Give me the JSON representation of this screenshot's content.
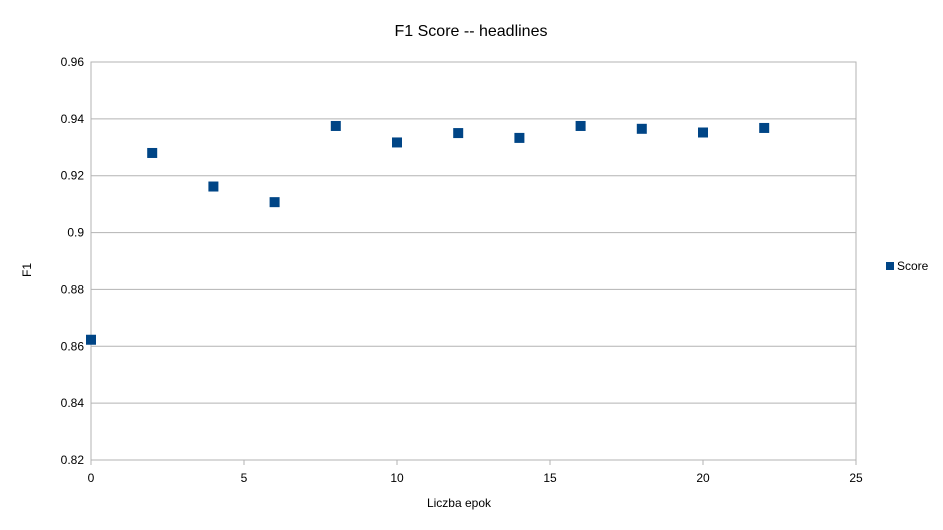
{
  "chart_data": {
    "type": "scatter",
    "title": "F1 Score -- headlines",
    "xlabel": "Liczba epok",
    "ylabel": "F1",
    "xlim": [
      0,
      25
    ],
    "ylim": [
      0.82,
      0.96
    ],
    "xticks": [
      0,
      5,
      10,
      15,
      20,
      25
    ],
    "yticks": [
      0.82,
      0.84,
      0.86,
      0.88,
      0.9,
      0.92,
      0.94,
      0.96
    ],
    "ytick_labels": [
      "0.82",
      "0.84",
      "0.86",
      "0.88",
      "0.9",
      "0.92",
      "0.94",
      "0.96"
    ],
    "grid": "horizontal",
    "legend_position": "right",
    "series": [
      {
        "name": "Score",
        "color": "#004586",
        "marker": "square",
        "x": [
          0,
          2,
          4,
          6,
          8,
          10,
          12,
          14,
          16,
          18,
          20,
          22
        ],
        "y": [
          0.8623,
          0.928,
          0.9162,
          0.9107,
          0.9375,
          0.9317,
          0.935,
          0.9333,
          0.9375,
          0.9365,
          0.9352,
          0.9368
        ]
      }
    ]
  }
}
